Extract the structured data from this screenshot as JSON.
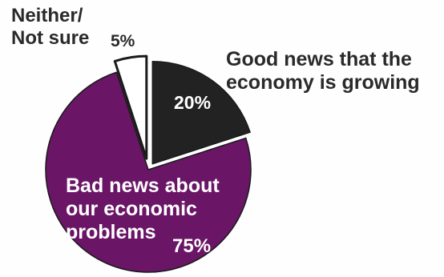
{
  "chart_data": {
    "type": "pie",
    "slices": [
      {
        "label_lines": [
          "Good news that the",
          "economy is growing"
        ],
        "value": 20,
        "value_label": "20%",
        "color": "#222222"
      },
      {
        "label_lines": [
          "Bad news about",
          "our economic",
          "problems"
        ],
        "value": 75,
        "value_label": "75%",
        "color": "#6a1566"
      },
      {
        "label_lines": [
          "Neither/",
          "Not sure"
        ],
        "value": 5,
        "value_label": "5%",
        "color": "#ffffff"
      }
    ]
  }
}
